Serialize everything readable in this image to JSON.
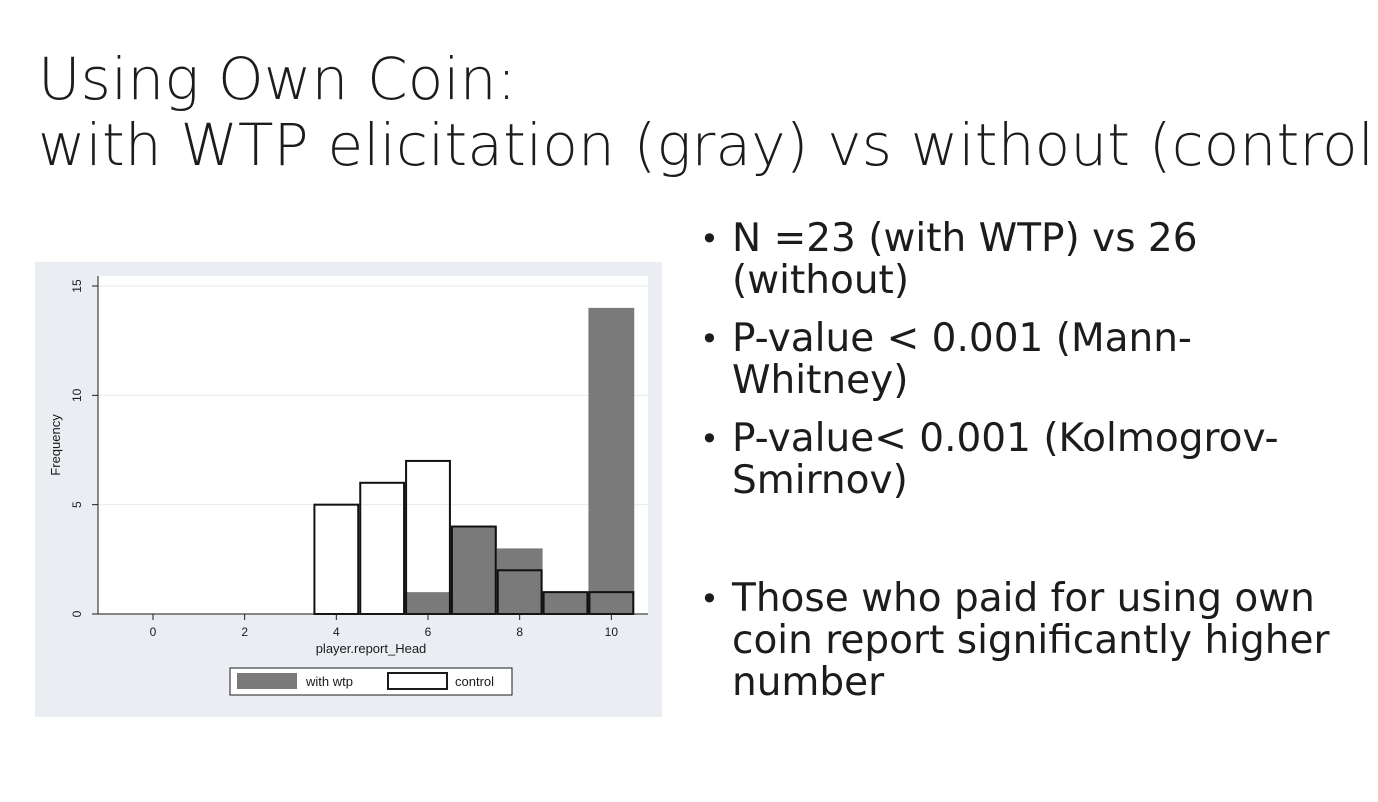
{
  "slide": {
    "title_line1": "Using Own Coin:",
    "title_line2": "with WTP elicitation (gray) vs without (control)",
    "bullets": [
      "N =23 (with WTP) vs 26 (without)",
      "P-value < 0.001 (Mann-Whitney)",
      "P-value< 0.001 (Kolmogrov-Smirnov)",
      "Those who paid for using own coin report significantly higher number"
    ]
  },
  "chart_data": {
    "type": "bar",
    "title": "",
    "xlabel": "player.report_Head",
    "ylabel": "Frequency",
    "xlim": [
      -1.2,
      10.8
    ],
    "ylim": [
      0,
      15
    ],
    "xticks": [
      "0",
      "2",
      "4",
      "6",
      "8",
      "10"
    ],
    "xtick_values": [
      0,
      2,
      4,
      6,
      8,
      10
    ],
    "yticks": [
      "0",
      "5",
      "10",
      "15"
    ],
    "ytick_values": [
      0,
      5,
      10,
      15
    ],
    "grid": true,
    "legend_position": "bottom",
    "series": [
      {
        "name": "with wtp",
        "style": "filled",
        "color": "#7a7a7a",
        "x": [
          6,
          7,
          8,
          9,
          10
        ],
        "values": [
          1,
          4,
          3,
          1,
          14
        ]
      },
      {
        "name": "control",
        "style": "outline",
        "color": "#ffffff",
        "x": [
          4,
          5,
          6,
          7,
          8,
          9,
          10
        ],
        "values": [
          5,
          6,
          7,
          4,
          2,
          1,
          1
        ]
      }
    ]
  }
}
